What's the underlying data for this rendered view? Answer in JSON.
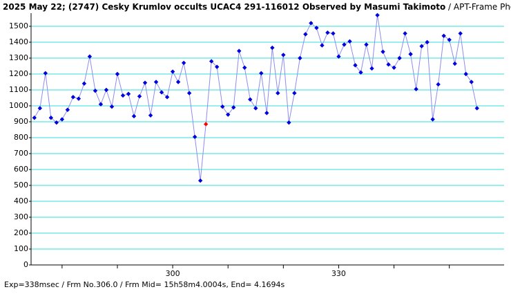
{
  "chart_data": {
    "type": "line",
    "title": "2025 May 22; (2747) Cesky Krumlov occults UCAC4 291-116012 Observed by Masumi Takimoto",
    "subtitle": " / APT-Frame Photometry /",
    "footer": "Exp=338msec / Frm No.306.0 / Frm Mid= 15h58m4.0004s, End= 4.1694s",
    "x": [
      275,
      276,
      277,
      278,
      279,
      280,
      281,
      282,
      283,
      284,
      285,
      286,
      287,
      288,
      289,
      290,
      291,
      292,
      293,
      294,
      295,
      296,
      297,
      298,
      299,
      300,
      301,
      302,
      303,
      304,
      305,
      306,
      307,
      308,
      309,
      310,
      311,
      312,
      313,
      314,
      315,
      316,
      317,
      318,
      319,
      320,
      321,
      322,
      323,
      324,
      325,
      326,
      327,
      328,
      329,
      330,
      331,
      332,
      333,
      334,
      335,
      336,
      337,
      338,
      339,
      340,
      341,
      342,
      343,
      344,
      345,
      346,
      347,
      348,
      349,
      350,
      351,
      352,
      353,
      354,
      355
    ],
    "values": [
      925,
      985,
      1205,
      925,
      895,
      915,
      975,
      1055,
      1045,
      1140,
      1310,
      1095,
      1010,
      1100,
      995,
      1200,
      1065,
      1075,
      935,
      1060,
      1145,
      940,
      1150,
      1085,
      1055,
      1215,
      1150,
      1270,
      1080,
      805,
      530,
      885,
      1280,
      1245,
      995,
      945,
      990,
      1345,
      1240,
      1040,
      985,
      1205,
      955,
      1365,
      1080,
      1320,
      895,
      1080,
      1300,
      1450,
      1520,
      1490,
      1380,
      1460,
      1455,
      1310,
      1385,
      1405,
      1255,
      1210,
      1385,
      1235,
      1570,
      1340,
      1260,
      1240,
      1300,
      1455,
      1325,
      1105,
      1375,
      1400,
      915,
      1135,
      1440,
      1415,
      1265,
      1455,
      1200,
      1150,
      985
    ],
    "line_color": "#8c8cf0",
    "color": "#0000dd",
    "highlight": {
      "x": 306,
      "color": "#ff0000"
    },
    "xlim": [
      274.4,
      359.9
    ],
    "xticks": [
      300,
      330
    ],
    "xminor_ticks": [
      280,
      290,
      310,
      320,
      340,
      350
    ],
    "ylim": [
      0,
      1600
    ],
    "yticks": [
      0,
      100,
      200,
      300,
      400,
      500,
      600,
      700,
      800,
      900,
      1000,
      1100,
      1200,
      1300,
      1400,
      1500
    ],
    "grid": true,
    "grid_color": "#33dddd"
  }
}
